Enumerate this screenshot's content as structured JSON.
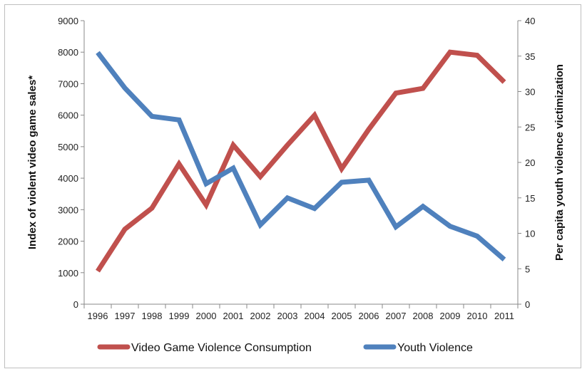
{
  "chart_data": {
    "type": "line",
    "x": [
      "1996",
      "1997",
      "1998",
      "1999",
      "2000",
      "2001",
      "2002",
      "2003",
      "2004",
      "2005",
      "2006",
      "2007",
      "2008",
      "2009",
      "2010",
      "2011"
    ],
    "series": [
      {
        "name": "Video Game Violence Consumption",
        "axis": "left",
        "color": "#c0504d",
        "values": [
          1050,
          2380,
          3050,
          4450,
          3150,
          5050,
          4050,
          5050,
          6000,
          4300,
          5550,
          6700,
          6850,
          8000,
          7900,
          7050
        ]
      },
      {
        "name": "Youth Violence",
        "axis": "right",
        "color": "#4f81bd",
        "values": [
          35.5,
          30.5,
          26.5,
          26.0,
          17.0,
          19.2,
          11.2,
          15.0,
          13.5,
          17.2,
          17.5,
          10.9,
          13.8,
          11.0,
          9.6,
          6.3
        ]
      }
    ],
    "ylabel": "Index of violent video game sales*",
    "y2label": "Per capita youth violence victimization",
    "ylim": [
      0,
      9000
    ],
    "y2lim": [
      0,
      40
    ],
    "yticks": [
      "0",
      "1000",
      "2000",
      "3000",
      "4000",
      "5000",
      "6000",
      "7000",
      "8000",
      "9000"
    ],
    "y2ticks": [
      "0",
      "5",
      "10",
      "15",
      "20",
      "25",
      "30",
      "35",
      "40"
    ],
    "grid": false,
    "legend": "bottom"
  }
}
